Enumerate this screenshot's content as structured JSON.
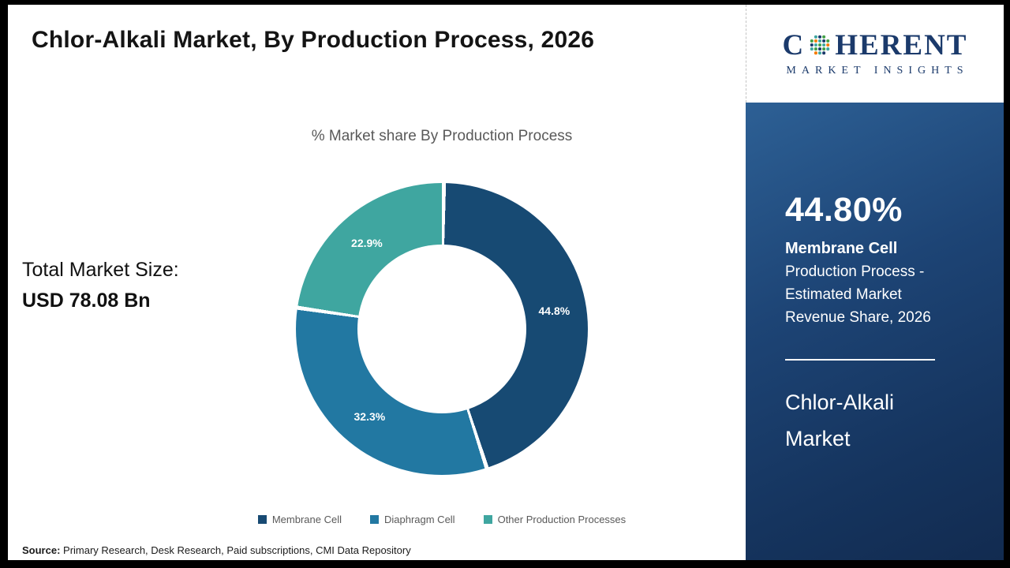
{
  "header": {
    "title": "Chlor-Alkali Market, By Production Process, 2026"
  },
  "logo": {
    "word_start": "C",
    "word_end": "HERENT",
    "tagline": "MARKET INSIGHTS",
    "brand_color": "#1b3a6b"
  },
  "left_panel": {
    "total_label": "Total Market Size:",
    "total_value": "USD 78.08 Bn"
  },
  "chart_data": {
    "type": "pie",
    "donut": true,
    "title": "% Market share By Production Process",
    "categories": [
      "Membrane Cell",
      "Diaphragm Cell",
      "Other Production Processes"
    ],
    "values": [
      44.8,
      32.3,
      22.9
    ],
    "labels": [
      "44.8%",
      "32.3%",
      "22.9%"
    ],
    "colors": [
      "#174a73",
      "#2278a2",
      "#3fa6a0"
    ],
    "legend_position": "bottom",
    "start_angle_deg": 0,
    "direction": "clockwise"
  },
  "sidebar": {
    "stat_value": "44.80%",
    "stat_title": "Membrane Cell",
    "stat_lines": [
      "Production Process -",
      "Estimated Market",
      "Revenue Share, 2026"
    ],
    "market_name_line1": "Chlor-Alkali",
    "market_name_line2": "Market"
  },
  "footer": {
    "source_label": "Source:",
    "source_text": " Primary Research, Desk Research, Paid subscriptions, CMI Data Repository"
  }
}
